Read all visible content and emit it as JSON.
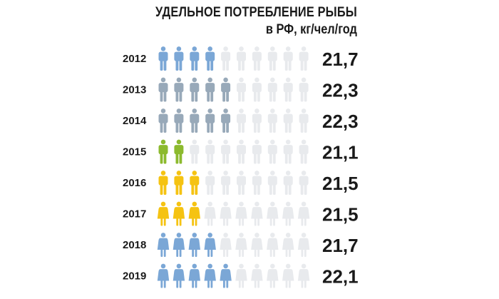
{
  "title": "УДЕЛЬНОЕ ПОТРЕБЛЕНИЕ РЫБЫ",
  "subtitle": "в РФ, кг/чел/год",
  "colors": {
    "blue": "#7ba7d6",
    "gray": "#98a9b9",
    "green": "#8cba2e",
    "yellow": "#f5c312",
    "empty": "#e8eaed"
  },
  "chart_data": {
    "type": "pictogram",
    "total_icons": 10,
    "rows": [
      {
        "year": "2012",
        "value": "21,7",
        "filled": 4,
        "color": "#7ba7d6",
        "icon": "man-icon"
      },
      {
        "year": "2013",
        "value": "22,3",
        "filled": 5,
        "color": "#98a9b9",
        "icon": "man-icon"
      },
      {
        "year": "2014",
        "value": "22,3",
        "filled": 5,
        "color": "#98a9b9",
        "icon": "man-icon"
      },
      {
        "year": "2015",
        "value": "21,1",
        "filled": 2,
        "color": "#8cba2e",
        "icon": "man-icon"
      },
      {
        "year": "2016",
        "value": "21,5",
        "filled": 3,
        "color": "#f5c312",
        "icon": "man-icon"
      },
      {
        "year": "2017",
        "value": "21,5",
        "filled": 3,
        "color": "#f5c312",
        "icon": "woman-icon"
      },
      {
        "year": "2018",
        "value": "21,7",
        "filled": 4,
        "color": "#7ba7d6",
        "icon": "woman-icon"
      },
      {
        "year": "2019",
        "value": "22,1",
        "filled": 5,
        "color": "#7ba7d6",
        "icon": "woman-icon"
      }
    ]
  }
}
